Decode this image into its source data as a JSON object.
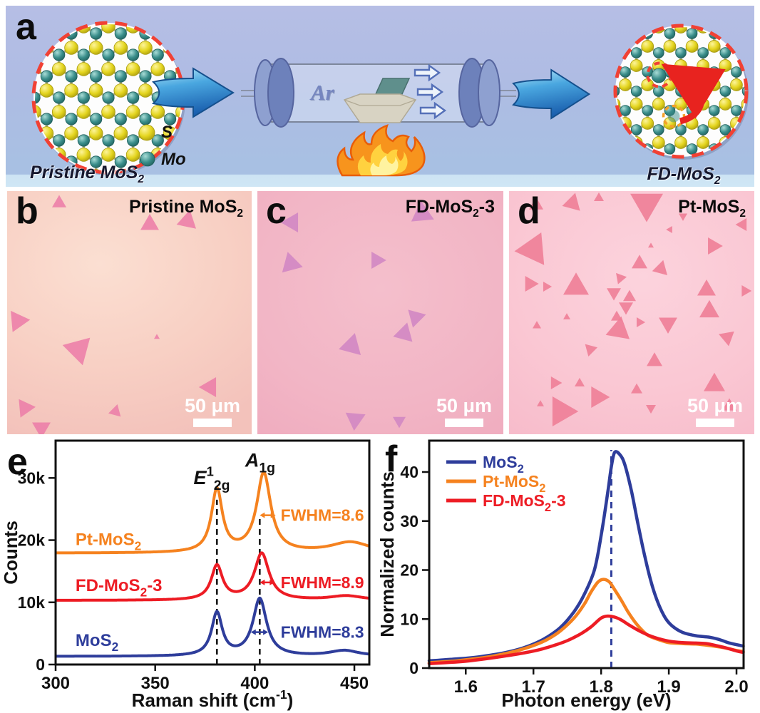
{
  "letters": {
    "a": "a",
    "b": "b",
    "c": "c",
    "d": "d",
    "e": "e",
    "f": "f"
  },
  "panel_a": {
    "pristine_label": {
      "pre": "Pristine MoS",
      "sub": "2"
    },
    "fd_label": {
      "pre": "FD-MoS",
      "sub": "2"
    },
    "legend_s": "S",
    "legend_mo": "Mo",
    "gas_label": "Ar",
    "colors": {
      "s_atom": "#e4d51f",
      "s_atom_hi": "#fdf49a",
      "s_atom_dk": "#a89a0e",
      "mo_atom": "#3a8e8b",
      "mo_atom_hi": "#a8dcd6",
      "mo_atom_dk": "#1f5f5c",
      "bond": "#a9ad7e",
      "ring": "#f14134",
      "vacancy_ring": "#f5a02a",
      "arrow_light": "#b9e8f8",
      "arrow_mid": "#4aa7e0",
      "arrow_dark": "#1a5fae",
      "arrow_edge": "#15508d",
      "cap_light": "#8ea0d0",
      "cap_dark": "#6d81bb",
      "cap_edge": "#56659f",
      "boat": "#d8d3c3",
      "boat_edge": "#b0a995",
      "substrate": "#5f8f8c",
      "substrate_edge": "#49706e",
      "flame_outer": "#f7941d",
      "flame_edge": "#e85d0a",
      "flame_mid": "#ffd23f",
      "flame_core": "#fff3a0",
      "flow_fill": "#eef4fb",
      "flow_edge": "#5570b8",
      "defect_arrow": "#e8231f"
    }
  },
  "panels": {
    "b": {
      "title": {
        "pre": "Pristine MoS",
        "sub": "2",
        "post": ""
      },
      "scalebar": "50 μm",
      "triangle_color": "#ec80a8",
      "triangles": [
        [
          73,
          17,
          20,
          0
        ],
        [
          200,
          47,
          26,
          0
        ],
        [
          253,
          42,
          28,
          12
        ],
        [
          15,
          182,
          30,
          -35
        ],
        [
          100,
          222,
          40,
          165
        ],
        [
          210,
          205,
          8,
          0
        ],
        [
          285,
          275,
          28,
          150
        ],
        [
          25,
          304,
          26,
          205
        ],
        [
          152,
          309,
          18,
          15
        ],
        [
          48,
          332,
          26,
          180
        ]
      ]
    },
    "c": {
      "title": {
        "pre": "FD-MoS",
        "sub": "2",
        "post": "-3"
      },
      "scalebar": "50 μm",
      "triangle_color": "#d287c3",
      "triangles": [
        [
          49,
          44,
          28,
          -90
        ],
        [
          47,
          102,
          30,
          105
        ],
        [
          167,
          97,
          24,
          90
        ],
        [
          231,
          32,
          32,
          235
        ],
        [
          222,
          177,
          26,
          75
        ],
        [
          206,
          200,
          28,
          15
        ],
        [
          132,
          217,
          32,
          -105
        ],
        [
          137,
          320,
          28,
          185
        ],
        [
          199,
          322,
          18,
          180
        ]
      ]
    },
    "d": {
      "title": {
        "pre": "Pt-MoS",
        "sub": "2",
        "post": ""
      },
      "scalebar": "50 μm",
      "triangle_color": "#ee7e97",
      "triangles": [
        [
          38,
          20,
          20,
          0
        ],
        [
          89,
          17,
          26,
          15
        ],
        [
          126,
          10,
          14,
          0
        ],
        [
          193,
          17,
          46,
          180
        ],
        [
          244,
          35,
          12,
          180
        ],
        [
          226,
          54,
          10,
          30
        ],
        [
          328,
          47,
          18,
          -90
        ],
        [
          34,
          82,
          46,
          -95
        ],
        [
          199,
          77,
          8,
          0
        ],
        [
          286,
          77,
          24,
          90
        ],
        [
          183,
          102,
          22,
          0
        ],
        [
          213,
          109,
          22,
          15
        ],
        [
          156,
          122,
          16,
          200
        ],
        [
          29,
          130,
          22,
          90
        ],
        [
          52,
          134,
          14,
          90
        ],
        [
          94,
          135,
          36,
          0
        ],
        [
          147,
          142,
          20,
          180
        ],
        [
          169,
          149,
          18,
          0
        ],
        [
          277,
          139,
          26,
          0
        ],
        [
          331,
          140,
          16,
          90
        ],
        [
          164,
          162,
          20,
          180
        ],
        [
          151,
          177,
          16,
          0
        ],
        [
          81,
          177,
          10,
          0
        ],
        [
          281,
          169,
          28,
          0
        ],
        [
          183,
          184,
          14,
          90
        ],
        [
          39,
          189,
          12,
          0
        ],
        [
          154,
          195,
          34,
          10
        ],
        [
          223,
          185,
          26,
          180
        ],
        [
          306,
          205,
          22,
          170
        ],
        [
          114,
          222,
          18,
          195
        ],
        [
          204,
          239,
          22,
          0
        ],
        [
          64,
          269,
          18,
          90
        ],
        [
          99,
          270,
          14,
          0
        ],
        [
          124,
          289,
          30,
          90
        ],
        [
          179,
          279,
          16,
          0
        ],
        [
          199,
          304,
          14,
          180
        ],
        [
          73,
          309,
          42,
          90
        ],
        [
          288,
          272,
          30,
          0
        ],
        [
          309,
          302,
          20,
          0
        ],
        [
          44,
          299,
          10,
          0
        ]
      ]
    }
  },
  "chart_data": [
    {
      "id": "raman",
      "type": "line",
      "xlabel_parts": [
        [
          "Raman shift (cm"
        ],
        [
          "-1",
          "sup"
        ],
        [
          ")",
          "post"
        ]
      ],
      "ylabel": "Counts",
      "xlim": [
        300,
        457.5
      ],
      "ylim": [
        0,
        36000
      ],
      "xticks": [
        {
          "v": 300,
          "label": "300"
        },
        {
          "v": 350,
          "label": "350"
        },
        {
          "v": 400,
          "label": "400"
        },
        {
          "v": 450,
          "label": "450"
        }
      ],
      "yticks": [
        {
          "v": 0,
          "label": "0"
        },
        {
          "v": 10000,
          "label": "10k"
        },
        {
          "v": 20000,
          "label": "20k"
        },
        {
          "v": 30000,
          "label": "30k"
        }
      ],
      "dashed_lines": [
        {
          "x": 381,
          "v1": 0,
          "v2": 26500
        },
        {
          "x": 402.5,
          "v1": 0,
          "v2": 24000
        }
      ],
      "dash_color": "#111111",
      "peak_labels": [
        {
          "parts": [
            [
              "E",
              "i"
            ],
            [
              "1",
              "sup"
            ],
            [
              "2g",
              "sub"
            ]
          ],
          "x": 378.4,
          "v": 29000
        },
        {
          "parts": [
            [
              "A",
              "i"
            ],
            [
              "1g",
              "sub"
            ]
          ],
          "x": 402.7,
          "v": 31800
        }
      ],
      "series": [
        {
          "name_parts": [
            [
              "Pt-MoS"
            ],
            [
              "2",
              "sub"
            ]
          ],
          "color": "#f5821f",
          "baseline": 17900,
          "peaks": [
            [
              381,
              10100,
              6.6
            ],
            [
              404.5,
              12700,
              8.6
            ],
            [
              448,
              1700,
              24
            ]
          ],
          "label_x": 310,
          "label_v": 19200,
          "fwhm": {
            "text": "FWHM=8.6",
            "text_x": 413,
            "v": 24000,
            "x1": 402.5,
            "x2": 410.5
          }
        },
        {
          "name_parts": [
            [
              "FD-MoS"
            ],
            [
              "2",
              "sub"
            ],
            [
              "-3",
              "post"
            ]
          ],
          "color": "#ed1c24",
          "baseline": 10300,
          "peaks": [
            [
              381,
              5500,
              6.8
            ],
            [
              403.5,
              7500,
              8.9
            ],
            [
              446,
              700,
              20
            ]
          ],
          "label_x": 310,
          "label_v": 11800,
          "fwhm": {
            "text": "FWHM=8.9",
            "text_x": 413,
            "v": 13200,
            "x1": 402.5,
            "x2": 410
          }
        },
        {
          "name_parts": [
            [
              "MoS"
            ],
            [
              "2",
              "sub"
            ]
          ],
          "color": "#2e3d9b",
          "baseline": 1300,
          "peaks": [
            [
              381,
              6900,
              6.4
            ],
            [
              402.5,
              9200,
              8.3
            ],
            [
              445,
              900,
              18
            ]
          ],
          "label_x": 310,
          "label_v": 3000,
          "fwhm": {
            "text": "FWHM=8.3",
            "text_x": 413,
            "v": 5200,
            "x1": 398,
            "x2": 406.7
          }
        }
      ]
    },
    {
      "id": "pl",
      "type": "line",
      "xlabel": "Photon energy (eV)",
      "ylabel": "Normalized counts",
      "xlim": [
        1.546,
        2.0105
      ],
      "ylim": [
        0,
        46.4
      ],
      "xticks": [
        {
          "v": 1.6,
          "label": "1.6"
        },
        {
          "v": 1.7,
          "label": "1.7"
        },
        {
          "v": 1.8,
          "label": "1.8"
        },
        {
          "v": 1.9,
          "label": "1.9"
        },
        {
          "v": 2.0,
          "label": "2.0"
        }
      ],
      "yticks": [
        {
          "v": 0,
          "label": "0"
        },
        {
          "v": 10,
          "label": "10"
        },
        {
          "v": 20,
          "label": "20"
        },
        {
          "v": 30,
          "label": "30"
        },
        {
          "v": 40,
          "label": "40"
        }
      ],
      "dashed_line": {
        "x": 1.815,
        "v1": 0,
        "v2": 44.5,
        "color": "#2e3d9b"
      },
      "legend_pos": "top-left",
      "series": [
        {
          "name_parts": [
            [
              "MoS"
            ],
            [
              "2",
              "sub"
            ]
          ],
          "color": "#2e3d9b",
          "points": [
            [
              1.546,
              1.5
            ],
            [
              1.56,
              1.6
            ],
            [
              1.58,
              1.8
            ],
            [
              1.6,
              2.0
            ],
            [
              1.62,
              2.3
            ],
            [
              1.64,
              2.7
            ],
            [
              1.66,
              3.2
            ],
            [
              1.68,
              3.9
            ],
            [
              1.7,
              4.9
            ],
            [
              1.72,
              6.3
            ],
            [
              1.74,
              8.3
            ],
            [
              1.76,
              11.5
            ],
            [
              1.775,
              15
            ],
            [
              1.79,
              20
            ],
            [
              1.8,
              27
            ],
            [
              1.81,
              36
            ],
            [
              1.815,
              41
            ],
            [
              1.82,
              44
            ],
            [
              1.828,
              43.5
            ],
            [
              1.835,
              41.5
            ],
            [
              1.845,
              36
            ],
            [
              1.855,
              29
            ],
            [
              1.865,
              22.5
            ],
            [
              1.875,
              17
            ],
            [
              1.885,
              13
            ],
            [
              1.895,
              10.2
            ],
            [
              1.905,
              8.6
            ],
            [
              1.92,
              7.3
            ],
            [
              1.94,
              6.6
            ],
            [
              1.96,
              6.3
            ],
            [
              1.975,
              5.8
            ],
            [
              1.99,
              5.1
            ],
            [
              2.01,
              4.5
            ]
          ]
        },
        {
          "name_parts": [
            [
              "Pt-MoS"
            ],
            [
              "2",
              "sub"
            ]
          ],
          "color": "#f5821f",
          "points": [
            [
              1.546,
              1.1
            ],
            [
              1.58,
              1.4
            ],
            [
              1.6,
              1.7
            ],
            [
              1.63,
              2.2
            ],
            [
              1.66,
              3.0
            ],
            [
              1.68,
              3.7
            ],
            [
              1.7,
              4.6
            ],
            [
              1.72,
              5.8
            ],
            [
              1.74,
              7.6
            ],
            [
              1.76,
              10.2
            ],
            [
              1.775,
              13
            ],
            [
              1.785,
              15.5
            ],
            [
              1.795,
              17.5
            ],
            [
              1.803,
              18.1
            ],
            [
              1.812,
              17.6
            ],
            [
              1.82,
              16
            ],
            [
              1.83,
              13.8
            ],
            [
              1.84,
              11.4
            ],
            [
              1.85,
              9.4
            ],
            [
              1.86,
              7.8
            ],
            [
              1.87,
              6.6
            ],
            [
              1.885,
              5.8
            ],
            [
              1.9,
              5.2
            ],
            [
              1.92,
              5.0
            ],
            [
              1.94,
              4.9
            ],
            [
              1.96,
              4.6
            ],
            [
              1.98,
              4.2
            ],
            [
              2.0,
              3.6
            ],
            [
              2.01,
              3.4
            ]
          ]
        },
        {
          "name_parts": [
            [
              "FD-MoS"
            ],
            [
              "2",
              "sub"
            ],
            [
              "-3",
              "post"
            ]
          ],
          "color": "#ed1c24",
          "points": [
            [
              1.546,
              0.9
            ],
            [
              1.58,
              1.2
            ],
            [
              1.6,
              1.4
            ],
            [
              1.63,
              1.9
            ],
            [
              1.66,
              2.5
            ],
            [
              1.69,
              3.2
            ],
            [
              1.71,
              3.8
            ],
            [
              1.73,
              4.6
            ],
            [
              1.75,
              5.6
            ],
            [
              1.77,
              7.0
            ],
            [
              1.785,
              8.4
            ],
            [
              1.8,
              10.2
            ],
            [
              1.81,
              10.6
            ],
            [
              1.82,
              10.4
            ],
            [
              1.83,
              9.8
            ],
            [
              1.84,
              8.9
            ],
            [
              1.855,
              7.7
            ],
            [
              1.87,
              6.7
            ],
            [
              1.885,
              6.0
            ],
            [
              1.9,
              5.5
            ],
            [
              1.92,
              5.2
            ],
            [
              1.94,
              5.1
            ],
            [
              1.955,
              5.0
            ],
            [
              1.97,
              4.6
            ],
            [
              1.985,
              4.1
            ],
            [
              2.0,
              3.5
            ],
            [
              2.01,
              3.2
            ]
          ]
        }
      ]
    }
  ]
}
